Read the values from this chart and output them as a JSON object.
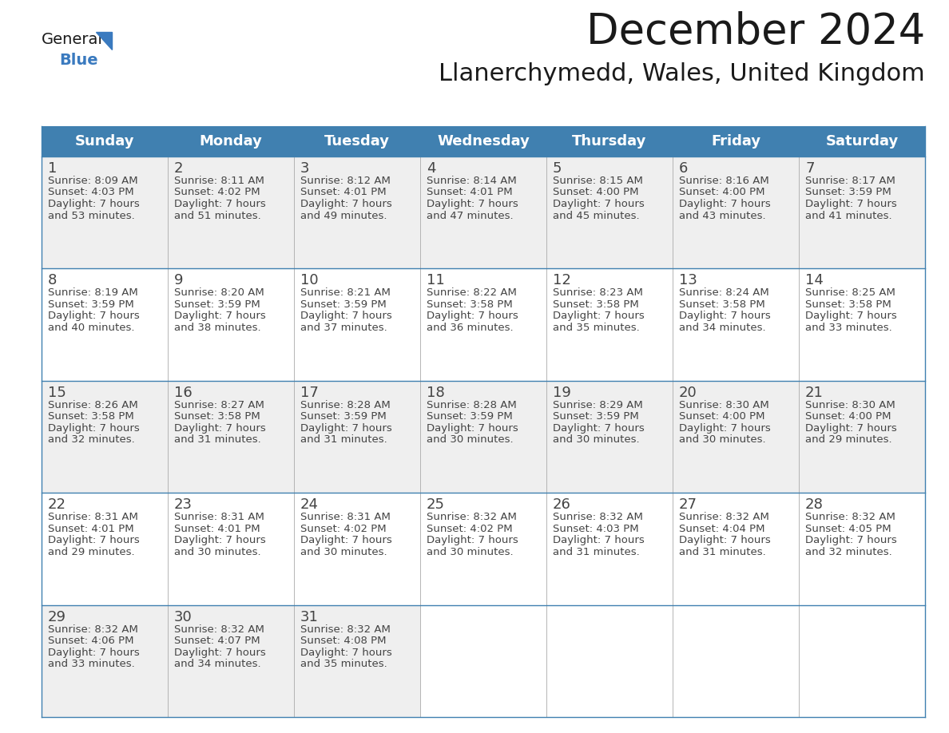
{
  "title": "December 2024",
  "subtitle": "Llanerchymedd, Wales, United Kingdom",
  "header_bg": "#4080b0",
  "header_text_color": "#FFFFFF",
  "cell_bg_white": "#FFFFFF",
  "cell_bg_gray": "#EFEFEF",
  "cell_text_color": "#444444",
  "day_number_color": "#444444",
  "border_color": "#4080b0",
  "sep_color": "#aaaaaa",
  "days_of_week": [
    "Sunday",
    "Monday",
    "Tuesday",
    "Wednesday",
    "Thursday",
    "Friday",
    "Saturday"
  ],
  "calendar": [
    [
      {
        "day": 1,
        "sunrise": "8:09 AM",
        "sunset": "4:03 PM",
        "daylight_hours": 7,
        "daylight_minutes": 53
      },
      {
        "day": 2,
        "sunrise": "8:11 AM",
        "sunset": "4:02 PM",
        "daylight_hours": 7,
        "daylight_minutes": 51
      },
      {
        "day": 3,
        "sunrise": "8:12 AM",
        "sunset": "4:01 PM",
        "daylight_hours": 7,
        "daylight_minutes": 49
      },
      {
        "day": 4,
        "sunrise": "8:14 AM",
        "sunset": "4:01 PM",
        "daylight_hours": 7,
        "daylight_minutes": 47
      },
      {
        "day": 5,
        "sunrise": "8:15 AM",
        "sunset": "4:00 PM",
        "daylight_hours": 7,
        "daylight_minutes": 45
      },
      {
        "day": 6,
        "sunrise": "8:16 AM",
        "sunset": "4:00 PM",
        "daylight_hours": 7,
        "daylight_minutes": 43
      },
      {
        "day": 7,
        "sunrise": "8:17 AM",
        "sunset": "3:59 PM",
        "daylight_hours": 7,
        "daylight_minutes": 41
      }
    ],
    [
      {
        "day": 8,
        "sunrise": "8:19 AM",
        "sunset": "3:59 PM",
        "daylight_hours": 7,
        "daylight_minutes": 40
      },
      {
        "day": 9,
        "sunrise": "8:20 AM",
        "sunset": "3:59 PM",
        "daylight_hours": 7,
        "daylight_minutes": 38
      },
      {
        "day": 10,
        "sunrise": "8:21 AM",
        "sunset": "3:59 PM",
        "daylight_hours": 7,
        "daylight_minutes": 37
      },
      {
        "day": 11,
        "sunrise": "8:22 AM",
        "sunset": "3:58 PM",
        "daylight_hours": 7,
        "daylight_minutes": 36
      },
      {
        "day": 12,
        "sunrise": "8:23 AM",
        "sunset": "3:58 PM",
        "daylight_hours": 7,
        "daylight_minutes": 35
      },
      {
        "day": 13,
        "sunrise": "8:24 AM",
        "sunset": "3:58 PM",
        "daylight_hours": 7,
        "daylight_minutes": 34
      },
      {
        "day": 14,
        "sunrise": "8:25 AM",
        "sunset": "3:58 PM",
        "daylight_hours": 7,
        "daylight_minutes": 33
      }
    ],
    [
      {
        "day": 15,
        "sunrise": "8:26 AM",
        "sunset": "3:58 PM",
        "daylight_hours": 7,
        "daylight_minutes": 32
      },
      {
        "day": 16,
        "sunrise": "8:27 AM",
        "sunset": "3:58 PM",
        "daylight_hours": 7,
        "daylight_minutes": 31
      },
      {
        "day": 17,
        "sunrise": "8:28 AM",
        "sunset": "3:59 PM",
        "daylight_hours": 7,
        "daylight_minutes": 31
      },
      {
        "day": 18,
        "sunrise": "8:28 AM",
        "sunset": "3:59 PM",
        "daylight_hours": 7,
        "daylight_minutes": 30
      },
      {
        "day": 19,
        "sunrise": "8:29 AM",
        "sunset": "3:59 PM",
        "daylight_hours": 7,
        "daylight_minutes": 30
      },
      {
        "day": 20,
        "sunrise": "8:30 AM",
        "sunset": "4:00 PM",
        "daylight_hours": 7,
        "daylight_minutes": 30
      },
      {
        "day": 21,
        "sunrise": "8:30 AM",
        "sunset": "4:00 PM",
        "daylight_hours": 7,
        "daylight_minutes": 29
      }
    ],
    [
      {
        "day": 22,
        "sunrise": "8:31 AM",
        "sunset": "4:01 PM",
        "daylight_hours": 7,
        "daylight_minutes": 29
      },
      {
        "day": 23,
        "sunrise": "8:31 AM",
        "sunset": "4:01 PM",
        "daylight_hours": 7,
        "daylight_minutes": 30
      },
      {
        "day": 24,
        "sunrise": "8:31 AM",
        "sunset": "4:02 PM",
        "daylight_hours": 7,
        "daylight_minutes": 30
      },
      {
        "day": 25,
        "sunrise": "8:32 AM",
        "sunset": "4:02 PM",
        "daylight_hours": 7,
        "daylight_minutes": 30
      },
      {
        "day": 26,
        "sunrise": "8:32 AM",
        "sunset": "4:03 PM",
        "daylight_hours": 7,
        "daylight_minutes": 31
      },
      {
        "day": 27,
        "sunrise": "8:32 AM",
        "sunset": "4:04 PM",
        "daylight_hours": 7,
        "daylight_minutes": 31
      },
      {
        "day": 28,
        "sunrise": "8:32 AM",
        "sunset": "4:05 PM",
        "daylight_hours": 7,
        "daylight_minutes": 32
      }
    ],
    [
      {
        "day": 29,
        "sunrise": "8:32 AM",
        "sunset": "4:06 PM",
        "daylight_hours": 7,
        "daylight_minutes": 33
      },
      {
        "day": 30,
        "sunrise": "8:32 AM",
        "sunset": "4:07 PM",
        "daylight_hours": 7,
        "daylight_minutes": 34
      },
      {
        "day": 31,
        "sunrise": "8:32 AM",
        "sunset": "4:08 PM",
        "daylight_hours": 7,
        "daylight_minutes": 35
      },
      null,
      null,
      null,
      null
    ]
  ],
  "logo_general_color": "#1a1a1a",
  "logo_blue_color": "#3a7abf",
  "title_fontsize": 38,
  "subtitle_fontsize": 22,
  "header_fontsize": 13,
  "day_number_fontsize": 13,
  "cell_text_fontsize": 9.5
}
